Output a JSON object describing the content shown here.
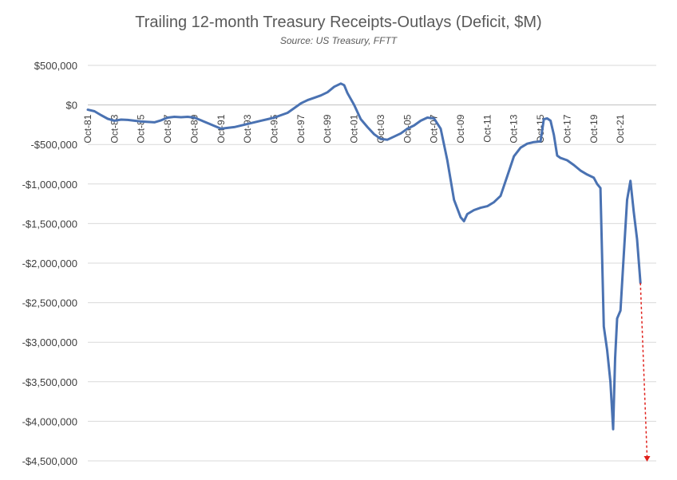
{
  "chart_data": {
    "type": "line",
    "title": "Trailing 12-month Treasury Receipts-Outlays (Deficit, $M)",
    "subtitle": "Source: US Treasury, FFTT",
    "xlabel": "",
    "ylabel": "",
    "ylim": [
      -4500000,
      500000
    ],
    "grid": true,
    "y_ticks": [
      {
        "value": 500000,
        "label": "$500,000"
      },
      {
        "value": 0,
        "label": "$0"
      },
      {
        "value": -500000,
        "label": "-$500,000"
      },
      {
        "value": -1000000,
        "label": "-$1,000,000"
      },
      {
        "value": -1500000,
        "label": "-$1,500,000"
      },
      {
        "value": -2000000,
        "label": "-$2,000,000"
      },
      {
        "value": -2500000,
        "label": "-$2,500,000"
      },
      {
        "value": -3000000,
        "label": "-$3,000,000"
      },
      {
        "value": -3500000,
        "label": "-$3,500,000"
      },
      {
        "value": -4000000,
        "label": "-$4,000,000"
      },
      {
        "value": -4500000,
        "label": "-$4,500,000"
      }
    ],
    "x_range": [
      1981.75,
      2023.0
    ],
    "x_ticks": [
      {
        "value": 1981.75,
        "label": "Oct-81"
      },
      {
        "value": 1983.75,
        "label": "Oct-83"
      },
      {
        "value": 1985.75,
        "label": "Oct-85"
      },
      {
        "value": 1987.75,
        "label": "Oct-87"
      },
      {
        "value": 1989.75,
        "label": "Oct-89"
      },
      {
        "value": 1991.75,
        "label": "Oct-91"
      },
      {
        "value": 1993.75,
        "label": "Oct-93"
      },
      {
        "value": 1995.75,
        "label": "Oct-95"
      },
      {
        "value": 1997.75,
        "label": "Oct-97"
      },
      {
        "value": 1999.75,
        "label": "Oct-99"
      },
      {
        "value": 2001.75,
        "label": "Oct-01"
      },
      {
        "value": 2003.75,
        "label": "Oct-03"
      },
      {
        "value": 2005.75,
        "label": "Oct-05"
      },
      {
        "value": 2007.75,
        "label": "Oct-07"
      },
      {
        "value": 2009.75,
        "label": "Oct-09"
      },
      {
        "value": 2011.75,
        "label": "Oct-11"
      },
      {
        "value": 2013.75,
        "label": "Oct-13"
      },
      {
        "value": 2015.75,
        "label": "Oct-15"
      },
      {
        "value": 2017.75,
        "label": "Oct-17"
      },
      {
        "value": 2019.75,
        "label": "Oct-19"
      },
      {
        "value": 2021.75,
        "label": "Oct-21"
      }
    ],
    "series": [
      {
        "color": "#4a72b2",
        "points": [
          [
            1981.75,
            -60000
          ],
          [
            1982.25,
            -80000
          ],
          [
            1982.75,
            -130000
          ],
          [
            1983.25,
            -175000
          ],
          [
            1983.75,
            -200000
          ],
          [
            1984.25,
            -185000
          ],
          [
            1984.75,
            -190000
          ],
          [
            1985.25,
            -200000
          ],
          [
            1985.75,
            -210000
          ],
          [
            1986.25,
            -215000
          ],
          [
            1986.75,
            -220000
          ],
          [
            1987.25,
            -195000
          ],
          [
            1987.75,
            -160000
          ],
          [
            1988.25,
            -150000
          ],
          [
            1988.75,
            -155000
          ],
          [
            1989.25,
            -150000
          ],
          [
            1989.75,
            -160000
          ],
          [
            1990.25,
            -195000
          ],
          [
            1990.75,
            -230000
          ],
          [
            1991.25,
            -265000
          ],
          [
            1991.75,
            -300000
          ],
          [
            1992.25,
            -290000
          ],
          [
            1992.75,
            -280000
          ],
          [
            1993.25,
            -260000
          ],
          [
            1993.75,
            -240000
          ],
          [
            1994.25,
            -220000
          ],
          [
            1994.75,
            -200000
          ],
          [
            1995.25,
            -180000
          ],
          [
            1995.75,
            -160000
          ],
          [
            1996.25,
            -130000
          ],
          [
            1996.75,
            -100000
          ],
          [
            1997.25,
            -40000
          ],
          [
            1997.75,
            20000
          ],
          [
            1998.25,
            60000
          ],
          [
            1998.75,
            90000
          ],
          [
            1999.25,
            120000
          ],
          [
            1999.75,
            160000
          ],
          [
            2000.25,
            230000
          ],
          [
            2000.75,
            270000
          ],
          [
            2001.0,
            250000
          ],
          [
            2001.25,
            150000
          ],
          [
            2001.75,
            0
          ],
          [
            2002.25,
            -180000
          ],
          [
            2002.75,
            -280000
          ],
          [
            2003.25,
            -370000
          ],
          [
            2003.75,
            -430000
          ],
          [
            2004.25,
            -440000
          ],
          [
            2004.75,
            -400000
          ],
          [
            2005.25,
            -360000
          ],
          [
            2005.75,
            -300000
          ],
          [
            2006.25,
            -260000
          ],
          [
            2006.75,
            -200000
          ],
          [
            2007.25,
            -160000
          ],
          [
            2007.75,
            -170000
          ],
          [
            2008.25,
            -300000
          ],
          [
            2008.75,
            -700000
          ],
          [
            2009.25,
            -1200000
          ],
          [
            2009.75,
            -1420000
          ],
          [
            2010.0,
            -1470000
          ],
          [
            2010.25,
            -1380000
          ],
          [
            2010.75,
            -1330000
          ],
          [
            2011.25,
            -1300000
          ],
          [
            2011.75,
            -1280000
          ],
          [
            2012.25,
            -1230000
          ],
          [
            2012.75,
            -1150000
          ],
          [
            2013.25,
            -900000
          ],
          [
            2013.75,
            -650000
          ],
          [
            2014.25,
            -540000
          ],
          [
            2014.75,
            -490000
          ],
          [
            2015.25,
            -470000
          ],
          [
            2015.75,
            -460000
          ],
          [
            2016.0,
            -180000
          ],
          [
            2016.25,
            -170000
          ],
          [
            2016.5,
            -200000
          ],
          [
            2016.75,
            -380000
          ],
          [
            2017.0,
            -640000
          ],
          [
            2017.25,
            -670000
          ],
          [
            2017.75,
            -700000
          ],
          [
            2018.25,
            -760000
          ],
          [
            2018.75,
            -830000
          ],
          [
            2019.25,
            -880000
          ],
          [
            2019.75,
            -920000
          ],
          [
            2020.0,
            -1000000
          ],
          [
            2020.25,
            -1050000
          ],
          [
            2020.5,
            -2800000
          ],
          [
            2020.75,
            -3100000
          ],
          [
            2021.0,
            -3500000
          ],
          [
            2021.2,
            -4100000
          ],
          [
            2021.35,
            -3200000
          ],
          [
            2021.5,
            -2700000
          ],
          [
            2021.75,
            -2600000
          ],
          [
            2022.0,
            -1900000
          ],
          [
            2022.25,
            -1200000
          ],
          [
            2022.5,
            -960000
          ],
          [
            2022.75,
            -1350000
          ],
          [
            2023.0,
            -1700000
          ],
          [
            2023.25,
            -2250000
          ]
        ]
      }
    ],
    "annotation": {
      "type": "dashed-arrow",
      "color": "#e0201b",
      "from": [
        2023.25,
        -2250000
      ],
      "to": [
        2023.75,
        -4500000
      ]
    }
  }
}
